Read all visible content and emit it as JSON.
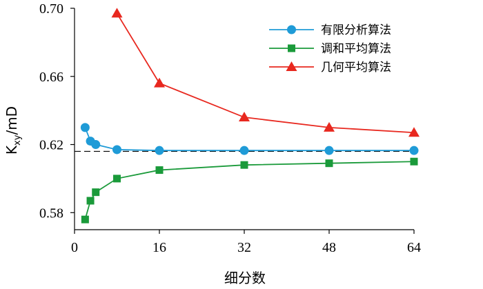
{
  "chart_data": {
    "type": "line",
    "xlabel": "细分数",
    "ylabel_main": "K",
    "ylabel_sub": "xy",
    "ylabel_unit": "/mD",
    "xlim": [
      0,
      64
    ],
    "ylim": [
      0.57,
      0.7
    ],
    "xticks": [
      0,
      16,
      32,
      48,
      64
    ],
    "yticks": [
      0.58,
      0.62,
      0.66,
      0.7
    ],
    "ytick_labels": [
      "0.58",
      "0.62",
      "0.66",
      "0.70"
    ],
    "grid": false,
    "legend_position": "top-right",
    "reference_line": {
      "y": 0.616,
      "style": "dashed",
      "color": "#000000"
    },
    "series": [
      {
        "name": "有限分析算法",
        "color": "#1f9bd7",
        "marker": "circle",
        "x": [
          2,
          3,
          4,
          8,
          16,
          32,
          48,
          64
        ],
        "y": [
          0.63,
          0.622,
          0.62,
          0.617,
          0.6165,
          0.6165,
          0.6165,
          0.6165
        ]
      },
      {
        "name": "调和平均算法",
        "color": "#1a9a3a",
        "marker": "square",
        "x": [
          2,
          3,
          4,
          8,
          16,
          32,
          48,
          64
        ],
        "y": [
          0.576,
          0.587,
          0.592,
          0.6,
          0.605,
          0.608,
          0.609,
          0.61
        ]
      },
      {
        "name": "几何平均算法",
        "color": "#e8281f",
        "marker": "triangle",
        "x": [
          8,
          16,
          32,
          48,
          64
        ],
        "y": [
          0.697,
          0.656,
          0.636,
          0.63,
          0.627
        ]
      }
    ]
  }
}
